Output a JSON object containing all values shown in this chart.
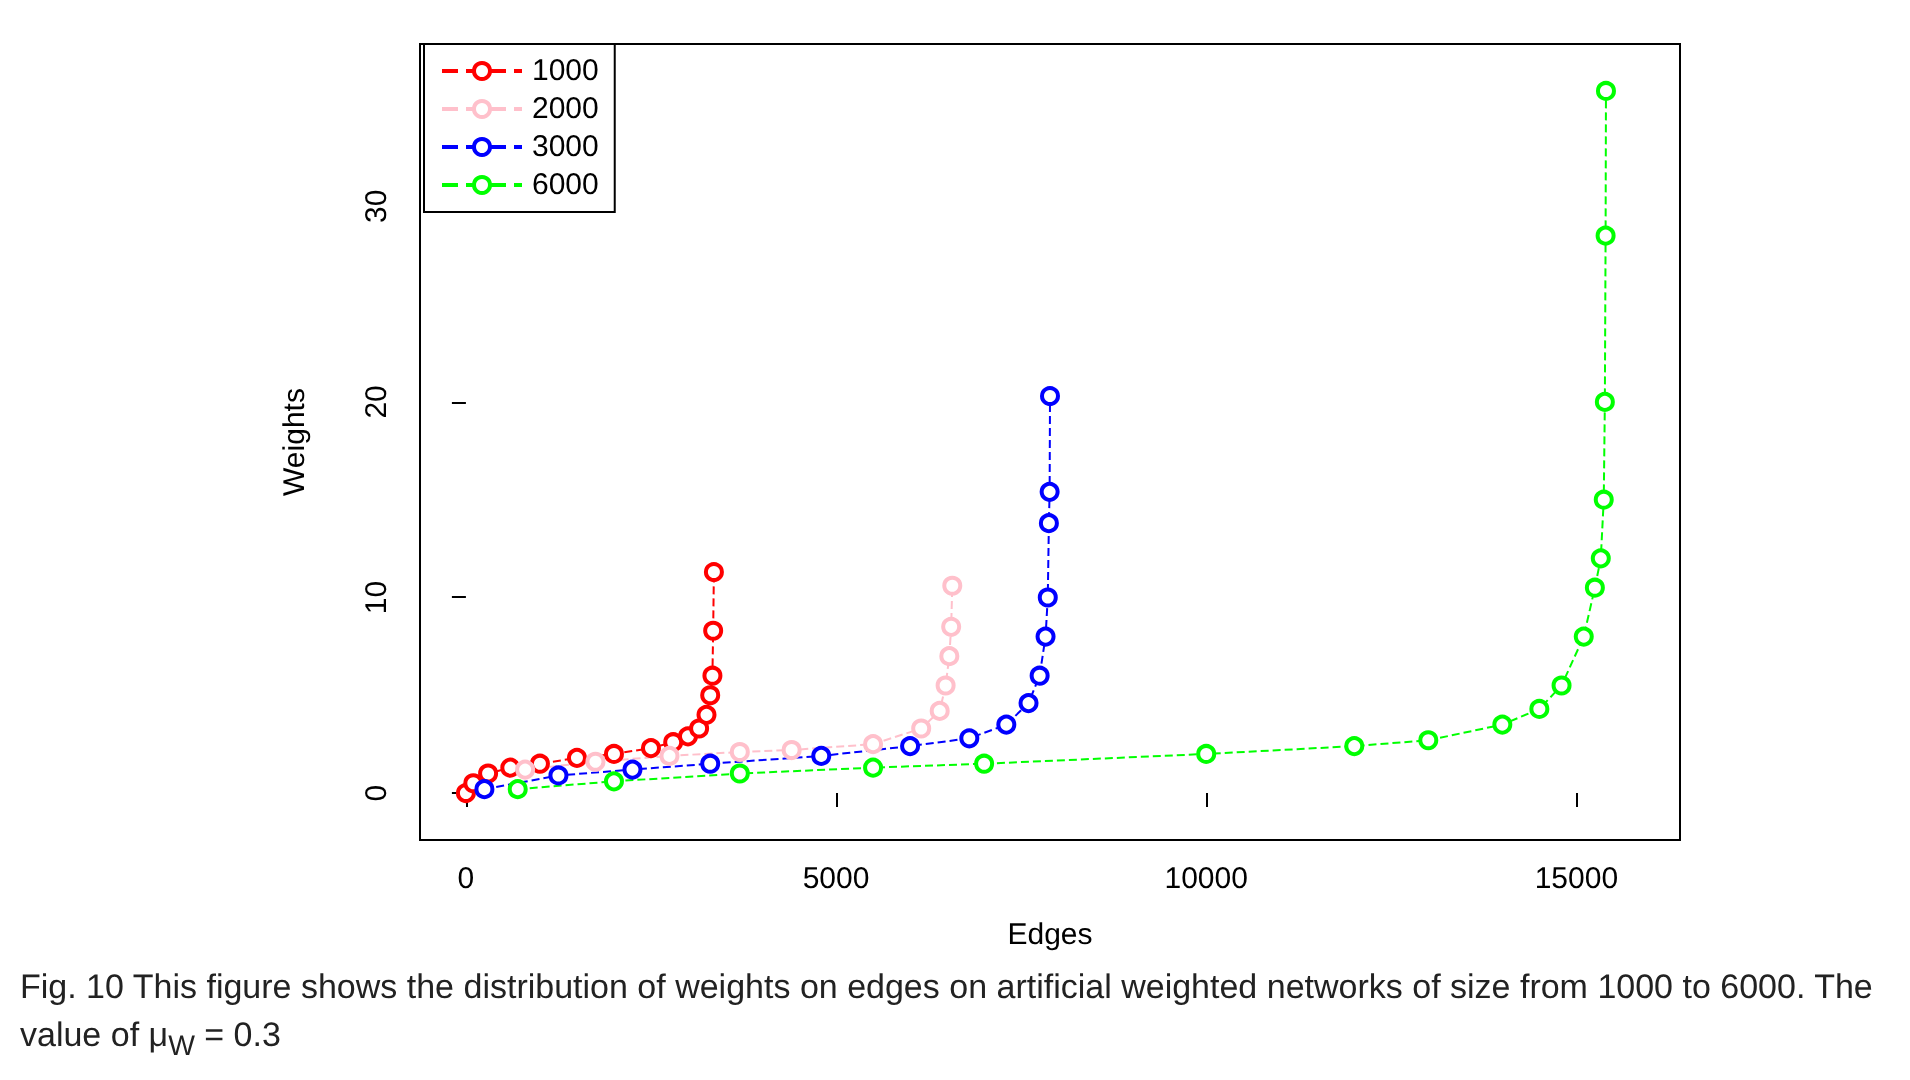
{
  "chart_data": {
    "type": "line",
    "xlabel": "Edges",
    "ylabel": "Weights",
    "xlim": [
      -620,
      16400
    ],
    "ylim": [
      -2.4,
      38.3
    ],
    "xticks": [
      0,
      5000,
      10000,
      15000
    ],
    "yticks": [
      0,
      10,
      20,
      30
    ],
    "grid": false,
    "legend": "top left",
    "marker": "circle",
    "line_style": "dashed",
    "annotations": [
      "Fig. 10  This figure shows the distribution of weights on edges on artificial weighted networks of size from 1000 to 6000. The value of μ$_{W}$ = 0.3"
    ],
    "series": [
      {
        "name": "1000",
        "color": "#ff0000",
        "x": [
          0,
          100,
          300,
          600,
          1000,
          1500,
          2000,
          2500,
          2800,
          3000,
          3150,
          3250,
          3300,
          3330,
          3340,
          3350
        ],
        "values": [
          0,
          0.5,
          1,
          1.3,
          1.5,
          1.8,
          2,
          2.3,
          2.6,
          2.9,
          3.3,
          4,
          5,
          6,
          8.3,
          11.3
        ]
      },
      {
        "name": "2000",
        "color": "#ffc0cb",
        "x": [
          800,
          1750,
          2750,
          3700,
          4400,
          5500,
          6150,
          6400,
          6480,
          6530,
          6555,
          6570
        ],
        "values": [
          1.2,
          1.6,
          1.9,
          2.1,
          2.2,
          2.5,
          3.3,
          4.2,
          5.5,
          7,
          8.5,
          10.6
        ]
      },
      {
        "name": "3000",
        "color": "#0000ff",
        "x": [
          250,
          1250,
          2250,
          3300,
          4800,
          6000,
          6800,
          7300,
          7600,
          7750,
          7830,
          7860,
          7875,
          7885,
          7890
        ],
        "values": [
          0.2,
          0.9,
          1.2,
          1.5,
          1.9,
          2.4,
          2.8,
          3.5,
          4.6,
          6,
          8,
          10,
          13.8,
          15.4,
          20.3
        ]
      },
      {
        "name": "6000",
        "color": "#00ff00",
        "x": [
          700,
          2000,
          3700,
          5500,
          7000,
          10000,
          12000,
          13000,
          14000,
          14500,
          14800,
          15100,
          15250,
          15330,
          15370,
          15385,
          15395,
          15400
        ],
        "values": [
          0.2,
          0.6,
          1,
          1.3,
          1.5,
          2,
          2.4,
          2.7,
          3.5,
          4.3,
          5.5,
          8,
          10.5,
          12,
          15,
          20,
          28.5,
          35.9
        ]
      }
    ]
  }
}
